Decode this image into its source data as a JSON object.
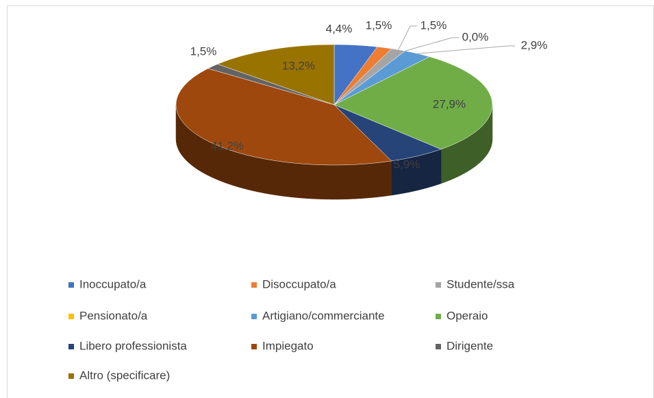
{
  "chart_data": {
    "type": "pie3d",
    "categories": [
      "Inoccupato/a",
      "Disoccupato/a",
      "Studente/ssa",
      "Pensionato/a",
      "Artigiano/commerciante",
      "Operaio",
      "Libero professionista",
      "Impiegato",
      "Dirigente",
      "Altro (specificare)"
    ],
    "values": [
      4.4,
      1.5,
      1.5,
      0.0,
      2.9,
      27.9,
      5.9,
      41.2,
      1.5,
      13.2
    ],
    "value_labels": [
      "4,4%",
      "1,5%",
      "1,5%",
      "0,0%",
      "2,9%",
      "27,9%",
      "5,9%",
      "41,2%",
      "1,5%",
      "13,2%"
    ],
    "colors": [
      "#4472c4",
      "#ed7d31",
      "#a5a5a5",
      "#ffc000",
      "#5b9bd5",
      "#70ad47",
      "#264478",
      "#9e480e",
      "#636363",
      "#997300"
    ],
    "legend": "bottom"
  }
}
